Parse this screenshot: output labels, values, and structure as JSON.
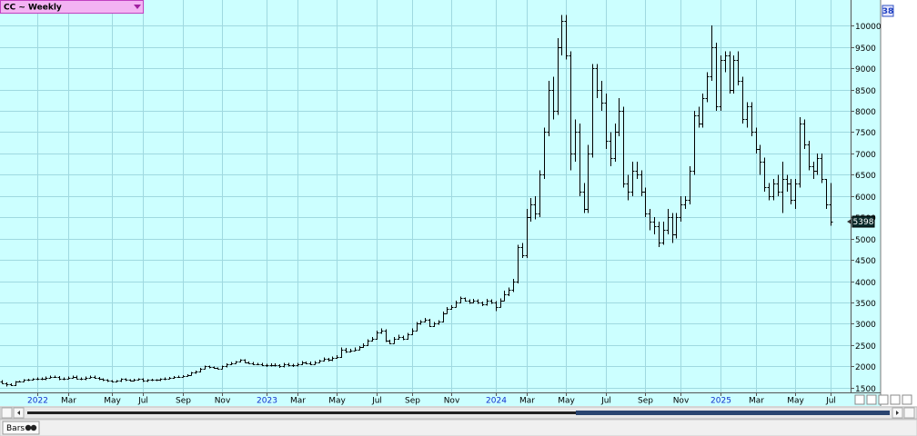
{
  "chart_data": {
    "type": "ohlc",
    "title": "CC ~ Weekly",
    "color": "#000000",
    "background": "#ccffff",
    "grid": true,
    "ylim": [
      1390,
      10600
    ],
    "yticks": [
      1500,
      2000,
      2500,
      3000,
      3500,
      4000,
      4500,
      5000,
      5500,
      6000,
      6500,
      7000,
      7500,
      8000,
      8500,
      9000,
      9500,
      10000
    ],
    "categories": [
      null,
      null,
      null,
      null,
      null,
      null,
      null,
      null,
      "2022",
      null,
      null,
      null,
      null,
      null,
      null,
      "Mar",
      null,
      null,
      null,
      null,
      null,
      null,
      null,
      null,
      null,
      "May",
      null,
      null,
      null,
      null,
      null,
      null,
      "Jul",
      null,
      null,
      null,
      null,
      null,
      null,
      null,
      null,
      "Sep",
      null,
      null,
      null,
      null,
      null,
      null,
      null,
      null,
      "Nov",
      null,
      null,
      null,
      null,
      null,
      null,
      null,
      null,
      null,
      "2023",
      null,
      null,
      null,
      null,
      null,
      null,
      "Mar",
      null,
      null,
      null,
      null,
      null,
      null,
      null,
      null,
      "May",
      null,
      null,
      null,
      null,
      null,
      null,
      null,
      null,
      "Jul",
      null,
      null,
      null,
      null,
      null,
      null,
      null,
      "Sep",
      null,
      null,
      null,
      null,
      null,
      null,
      null,
      null,
      "Nov",
      null,
      null,
      null,
      null,
      null,
      null,
      null,
      null,
      null,
      "2024",
      null,
      null,
      null,
      null,
      null,
      null,
      "Mar",
      null,
      null,
      null,
      null,
      null,
      null,
      null,
      null,
      "May",
      null,
      null,
      null,
      null,
      null,
      null,
      null,
      null,
      "Jul",
      null,
      null,
      null,
      null,
      null,
      null,
      null,
      null,
      "Sep",
      null,
      null,
      null,
      null,
      null,
      null,
      null,
      "Nov",
      null,
      null,
      null,
      null,
      null,
      null,
      null,
      null,
      "2025",
      null,
      null,
      null,
      null,
      null,
      null,
      null,
      "Mar",
      null,
      null,
      null,
      null,
      null,
      null,
      null,
      null,
      "May",
      null,
      null,
      null,
      null,
      null,
      null,
      null,
      "Jul"
    ],
    "ohlc": [
      [
        1650,
        1680,
        1590,
        1600
      ],
      [
        1600,
        1620,
        1530,
        1580
      ],
      [
        1580,
        1600,
        1540,
        1560
      ],
      [
        1560,
        1660,
        1540,
        1640
      ],
      [
        1640,
        1670,
        1620,
        1650
      ],
      [
        1650,
        1700,
        1630,
        1680
      ],
      [
        1680,
        1710,
        1660,
        1690
      ],
      [
        1690,
        1720,
        1670,
        1700
      ],
      [
        1700,
        1740,
        1680,
        1720
      ],
      [
        1720,
        1740,
        1680,
        1700
      ],
      [
        1700,
        1760,
        1680,
        1740
      ],
      [
        1740,
        1780,
        1720,
        1760
      ],
      [
        1760,
        1780,
        1730,
        1750
      ],
      [
        1750,
        1770,
        1680,
        1700
      ],
      [
        1700,
        1740,
        1680,
        1720
      ],
      [
        1720,
        1760,
        1700,
        1740
      ],
      [
        1740,
        1780,
        1720,
        1760
      ],
      [
        1760,
        1780,
        1700,
        1720
      ],
      [
        1720,
        1740,
        1680,
        1700
      ],
      [
        1700,
        1760,
        1680,
        1740
      ],
      [
        1740,
        1780,
        1720,
        1760
      ],
      [
        1760,
        1780,
        1710,
        1730
      ],
      [
        1730,
        1750,
        1680,
        1700
      ],
      [
        1700,
        1720,
        1660,
        1680
      ],
      [
        1680,
        1700,
        1640,
        1660
      ],
      [
        1660,
        1680,
        1620,
        1640
      ],
      [
        1640,
        1680,
        1620,
        1660
      ],
      [
        1660,
        1720,
        1640,
        1700
      ],
      [
        1700,
        1720,
        1660,
        1680
      ],
      [
        1680,
        1700,
        1650,
        1670
      ],
      [
        1670,
        1710,
        1650,
        1690
      ],
      [
        1690,
        1720,
        1670,
        1700
      ],
      [
        1700,
        1720,
        1640,
        1660
      ],
      [
        1660,
        1700,
        1640,
        1680
      ],
      [
        1680,
        1710,
        1660,
        1690
      ],
      [
        1690,
        1700,
        1660,
        1680
      ],
      [
        1680,
        1720,
        1660,
        1700
      ],
      [
        1700,
        1740,
        1680,
        1720
      ],
      [
        1720,
        1750,
        1700,
        1730
      ],
      [
        1730,
        1770,
        1710,
        1750
      ],
      [
        1750,
        1780,
        1730,
        1760
      ],
      [
        1760,
        1800,
        1740,
        1780
      ],
      [
        1780,
        1820,
        1760,
        1800
      ],
      [
        1800,
        1870,
        1780,
        1850
      ],
      [
        1850,
        1900,
        1830,
        1880
      ],
      [
        1880,
        1970,
        1860,
        1950
      ],
      [
        1950,
        2020,
        1930,
        2000
      ],
      [
        2000,
        2020,
        1960,
        1980
      ],
      [
        1980,
        2000,
        1940,
        1960
      ],
      [
        1960,
        1980,
        1930,
        1950
      ],
      [
        1950,
        2020,
        1930,
        2000
      ],
      [
        2000,
        2070,
        1980,
        2050
      ],
      [
        2050,
        2100,
        2030,
        2080
      ],
      [
        2080,
        2130,
        2060,
        2110
      ],
      [
        2110,
        2170,
        2090,
        2150
      ],
      [
        2150,
        2170,
        2080,
        2100
      ],
      [
        2100,
        2120,
        2060,
        2080
      ],
      [
        2080,
        2100,
        2030,
        2050
      ],
      [
        2050,
        2080,
        2030,
        2060
      ],
      [
        2060,
        2080,
        2010,
        2030
      ],
      [
        2030,
        2060,
        1990,
        2020
      ],
      [
        2020,
        2070,
        2000,
        2040
      ],
      [
        2040,
        2070,
        2000,
        2030
      ],
      [
        2030,
        2050,
        1970,
        2000
      ],
      [
        2000,
        2080,
        1980,
        2050
      ],
      [
        2050,
        2080,
        2000,
        2030
      ],
      [
        2030,
        2060,
        1990,
        2020
      ],
      [
        2020,
        2080,
        2000,
        2050
      ],
      [
        2050,
        2130,
        2030,
        2100
      ],
      [
        2100,
        2120,
        2050,
        2080
      ],
      [
        2080,
        2110,
        2030,
        2060
      ],
      [
        2060,
        2130,
        2040,
        2100
      ],
      [
        2100,
        2160,
        2080,
        2130
      ],
      [
        2130,
        2210,
        2110,
        2180
      ],
      [
        2180,
        2200,
        2120,
        2150
      ],
      [
        2150,
        2230,
        2130,
        2200
      ],
      [
        2200,
        2260,
        2180,
        2220
      ],
      [
        2220,
        2440,
        2200,
        2400
      ],
      [
        2400,
        2430,
        2320,
        2350
      ],
      [
        2350,
        2410,
        2330,
        2380
      ],
      [
        2380,
        2440,
        2360,
        2400
      ],
      [
        2400,
        2480,
        2380,
        2450
      ],
      [
        2450,
        2540,
        2430,
        2500
      ],
      [
        2500,
        2640,
        2480,
        2600
      ],
      [
        2600,
        2690,
        2580,
        2650
      ],
      [
        2650,
        2840,
        2630,
        2800
      ],
      [
        2800,
        2890,
        2760,
        2850
      ],
      [
        2850,
        2870,
        2570,
        2600
      ],
      [
        2600,
        2630,
        2520,
        2550
      ],
      [
        2550,
        2690,
        2530,
        2650
      ],
      [
        2650,
        2740,
        2630,
        2700
      ],
      [
        2700,
        2720,
        2620,
        2650
      ],
      [
        2650,
        2790,
        2630,
        2750
      ],
      [
        2750,
        2890,
        2730,
        2850
      ],
      [
        2850,
        3040,
        2830,
        3000
      ],
      [
        3000,
        3090,
        2980,
        3050
      ],
      [
        3050,
        3140,
        3030,
        3100
      ],
      [
        3100,
        3120,
        2920,
        2950
      ],
      [
        2950,
        3040,
        2930,
        3000
      ],
      [
        3000,
        3090,
        2980,
        3050
      ],
      [
        3050,
        3290,
        3030,
        3250
      ],
      [
        3250,
        3390,
        3230,
        3350
      ],
      [
        3350,
        3440,
        3330,
        3400
      ],
      [
        3400,
        3540,
        3380,
        3500
      ],
      [
        3500,
        3640,
        3480,
        3600
      ],
      [
        3600,
        3620,
        3520,
        3550
      ],
      [
        3550,
        3570,
        3470,
        3500
      ],
      [
        3500,
        3590,
        3480,
        3550
      ],
      [
        3550,
        3570,
        3470,
        3500
      ],
      [
        3500,
        3520,
        3420,
        3450
      ],
      [
        3450,
        3590,
        3430,
        3550
      ],
      [
        3550,
        3570,
        3470,
        3500
      ],
      [
        3500,
        3530,
        3300,
        3400
      ],
      [
        3400,
        3600,
        3380,
        3550
      ],
      [
        3550,
        3780,
        3530,
        3700
      ],
      [
        3700,
        3850,
        3650,
        3800
      ],
      [
        3800,
        4050,
        3750,
        4000
      ],
      [
        4000,
        4850,
        3950,
        4800
      ],
      [
        4800,
        4900,
        4550,
        4600
      ],
      [
        4600,
        5700,
        4550,
        5500
      ],
      [
        5500,
        5950,
        5400,
        5800
      ],
      [
        5800,
        6000,
        5450,
        5600
      ],
      [
        5600,
        6600,
        5500,
        6500
      ],
      [
        6500,
        7600,
        6400,
        7500
      ],
      [
        7500,
        8700,
        7400,
        8500
      ],
      [
        8500,
        8800,
        7800,
        8000
      ],
      [
        8000,
        9700,
        7900,
        9500
      ],
      [
        9500,
        10250,
        9300,
        10100
      ],
      [
        10100,
        10250,
        9200,
        9300
      ],
      [
        9300,
        9400,
        6600,
        7000
      ],
      [
        7000,
        7800,
        6800,
        7500
      ],
      [
        7500,
        7700,
        6000,
        6100
      ],
      [
        6100,
        6300,
        5600,
        5700
      ],
      [
        5700,
        7200,
        5600,
        7000
      ],
      [
        7000,
        9100,
        6900,
        9000
      ],
      [
        9000,
        9100,
        8300,
        8500
      ],
      [
        8500,
        8700,
        8000,
        8200
      ],
      [
        8200,
        8400,
        7100,
        7300
      ],
      [
        7300,
        7500,
        6700,
        6900
      ],
      [
        6900,
        7700,
        6800,
        7500
      ],
      [
        7500,
        8300,
        7400,
        8000
      ],
      [
        8000,
        8100,
        6200,
        6300
      ],
      [
        6300,
        6500,
        5900,
        6100
      ],
      [
        6100,
        6800,
        6000,
        6600
      ],
      [
        6600,
        6800,
        6400,
        6500
      ],
      [
        6500,
        6600,
        6000,
        6100
      ],
      [
        6100,
        6200,
        5500,
        5600
      ],
      [
        5600,
        5700,
        5200,
        5400
      ],
      [
        5400,
        5500,
        5100,
        5300
      ],
      [
        5300,
        5400,
        4800,
        4900
      ],
      [
        4900,
        5400,
        4850,
        5200
      ],
      [
        5200,
        5700,
        5100,
        5500
      ],
      [
        5500,
        5600,
        4900,
        5100
      ],
      [
        5100,
        5600,
        5000,
        5500
      ],
      [
        5500,
        6000,
        5400,
        5800
      ],
      [
        5800,
        6000,
        5700,
        5900
      ],
      [
        5900,
        6700,
        5800,
        6600
      ],
      [
        6600,
        8000,
        6500,
        7900
      ],
      [
        7900,
        8100,
        7600,
        7700
      ],
      [
        7700,
        8400,
        7600,
        8300
      ],
      [
        8300,
        8900,
        8200,
        8800
      ],
      [
        8800,
        10000,
        8700,
        9500
      ],
      [
        9500,
        9600,
        8000,
        8100
      ],
      [
        8100,
        9300,
        8000,
        9200
      ],
      [
        9200,
        9400,
        8900,
        9300
      ],
      [
        9300,
        9400,
        8400,
        8500
      ],
      [
        8500,
        9300,
        8400,
        9200
      ],
      [
        9200,
        9400,
        8600,
        8700
      ],
      [
        8700,
        8800,
        7700,
        7800
      ],
      [
        7800,
        8200,
        7600,
        8100
      ],
      [
        8100,
        8200,
        7400,
        7500
      ],
      [
        7500,
        7600,
        7000,
        7100
      ],
      [
        7100,
        7200,
        6500,
        6800
      ],
      [
        6800,
        6900,
        6100,
        6200
      ],
      [
        6200,
        6300,
        5900,
        6000
      ],
      [
        6000,
        6400,
        5900,
        6300
      ],
      [
        6300,
        6500,
        6000,
        6100
      ],
      [
        6100,
        6800,
        5600,
        6400
      ],
      [
        6400,
        6500,
        6100,
        6300
      ],
      [
        6300,
        6400,
        5800,
        5900
      ],
      [
        5900,
        6400,
        5700,
        6300
      ],
      [
        6300,
        7850,
        6200,
        7700
      ],
      [
        7700,
        7800,
        7100,
        7200
      ],
      [
        7200,
        7300,
        6600,
        6700
      ],
      [
        6700,
        6800,
        6400,
        6600
      ],
      [
        6600,
        7000,
        6500,
        6900
      ],
      [
        6900,
        7000,
        6300,
        6400
      ],
      [
        6400,
        6400,
        5700,
        5800
      ],
      [
        5800,
        6300,
        5300,
        5398
      ]
    ]
  },
  "corner_badge": "38",
  "status_bar": {
    "tab": "Bars"
  }
}
